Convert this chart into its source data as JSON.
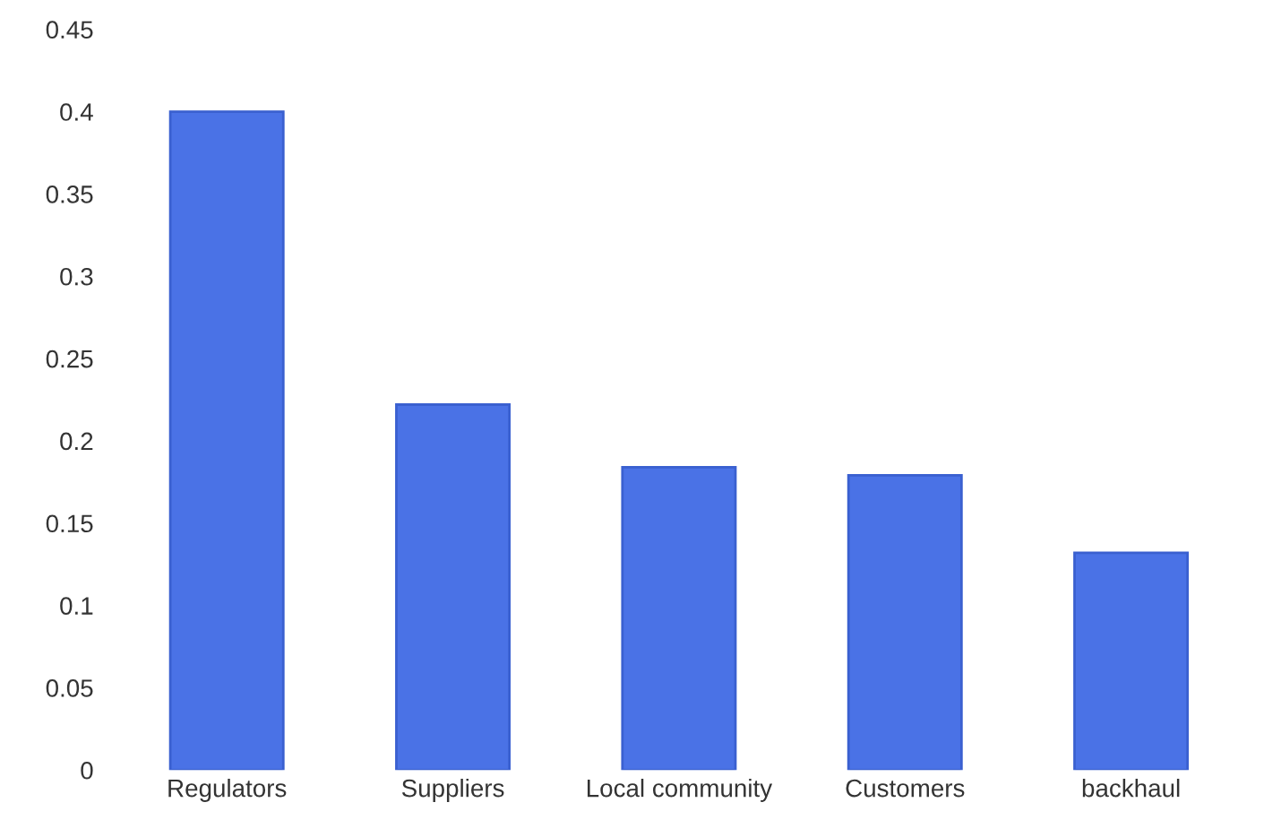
{
  "chart_data": {
    "type": "bar",
    "categories": [
      "Regulators",
      "Suppliers",
      "Local community",
      "Customers",
      "backhaul"
    ],
    "values": [
      0.4,
      0.222,
      0.184,
      0.179,
      0.132
    ],
    "color": "#4a72e6",
    "ylim": [
      0,
      0.45
    ],
    "yticks": [
      {
        "value": 0,
        "label": "0"
      },
      0.05,
      0.1,
      0.15,
      0.2,
      0.25,
      0.3,
      0.35,
      0.4,
      0.45
    ],
    "grid": false,
    "legend": false
  }
}
